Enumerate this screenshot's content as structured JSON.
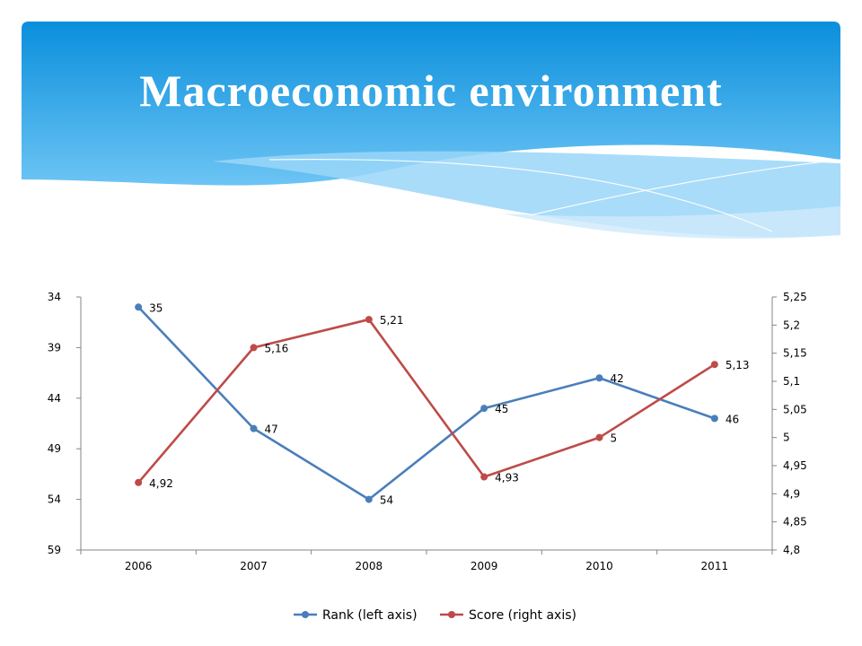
{
  "slide": {
    "title": "Macroeconomic environment"
  },
  "colors": {
    "banner_top": "#0b8fdc",
    "banner_bottom": "#5fbcf2",
    "rank": "#4a7ebb",
    "score": "#be4b48",
    "axis": "#868686"
  },
  "chart_data": {
    "type": "line",
    "categories": [
      "2006",
      "2007",
      "2008",
      "2009",
      "2010",
      "2011"
    ],
    "series": [
      {
        "name": "Rank (left axis)",
        "axis": "left",
        "values": [
          35,
          47,
          54,
          45,
          42,
          46
        ],
        "labels": [
          "35",
          "47",
          "54",
          "45",
          "42",
          "46"
        ]
      },
      {
        "name": "Score (right axis)",
        "axis": "right",
        "values": [
          4.92,
          5.16,
          5.21,
          4.93,
          5.0,
          5.13
        ],
        "labels": [
          "4,92",
          "5,16",
          "5,21",
          "4,93",
          "5",
          "5,13"
        ]
      }
    ],
    "left_axis": {
      "reversed": true,
      "ylim": [
        34,
        59
      ],
      "ticks": [
        34,
        39,
        44,
        49,
        54,
        59
      ],
      "tick_labels": [
        "34",
        "39",
        "44",
        "49",
        "54",
        "59"
      ]
    },
    "right_axis": {
      "ylim": [
        4.8,
        5.25
      ],
      "ticks": [
        5.25,
        5.2,
        5.15,
        5.1,
        5.05,
        5.0,
        4.95,
        4.9,
        4.85,
        4.8
      ],
      "tick_labels": [
        "5,25",
        "5,2",
        "5,15",
        "5,1",
        "5,05",
        "5",
        "4,95",
        "4,9",
        "4,85",
        "4,8"
      ]
    },
    "grid": false,
    "legend": "bottom"
  }
}
